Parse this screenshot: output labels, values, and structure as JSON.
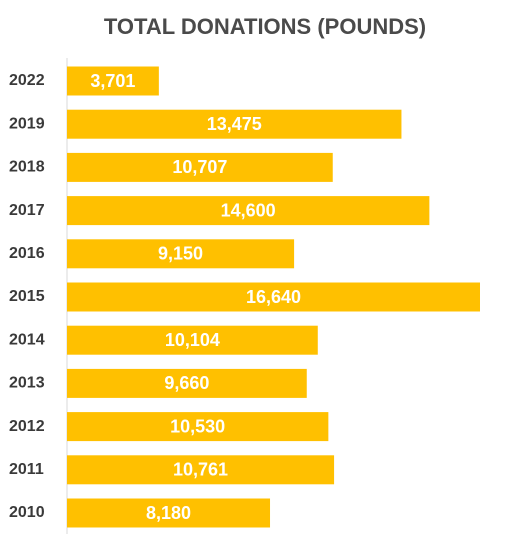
{
  "chart_data": {
    "type": "bar",
    "orientation": "horizontal",
    "title": "TOTAL DONATIONS (POUNDS)",
    "xlabel": "",
    "ylabel": "",
    "categories": [
      "2022",
      "2019",
      "2018",
      "2017",
      "2016",
      "2015",
      "2014",
      "2013",
      "2012",
      "2011",
      "2010"
    ],
    "values": [
      3701,
      13475,
      10707,
      14600,
      9150,
      16640,
      10104,
      9660,
      10530,
      10761,
      8180
    ],
    "data_labels": [
      "3,701",
      "13,475",
      "10,707",
      "14,600",
      "9,150",
      "16,640",
      "10,104",
      "9,660",
      "10,530",
      "10,761",
      "8,180"
    ],
    "xlim": [
      0,
      16640
    ],
    "grid": false,
    "legend": "none",
    "bar_color": "#FFC000",
    "label_color": "#FFFFFF",
    "title_color": "#4A4A4A",
    "tick_color": "#3A3A3A"
  }
}
